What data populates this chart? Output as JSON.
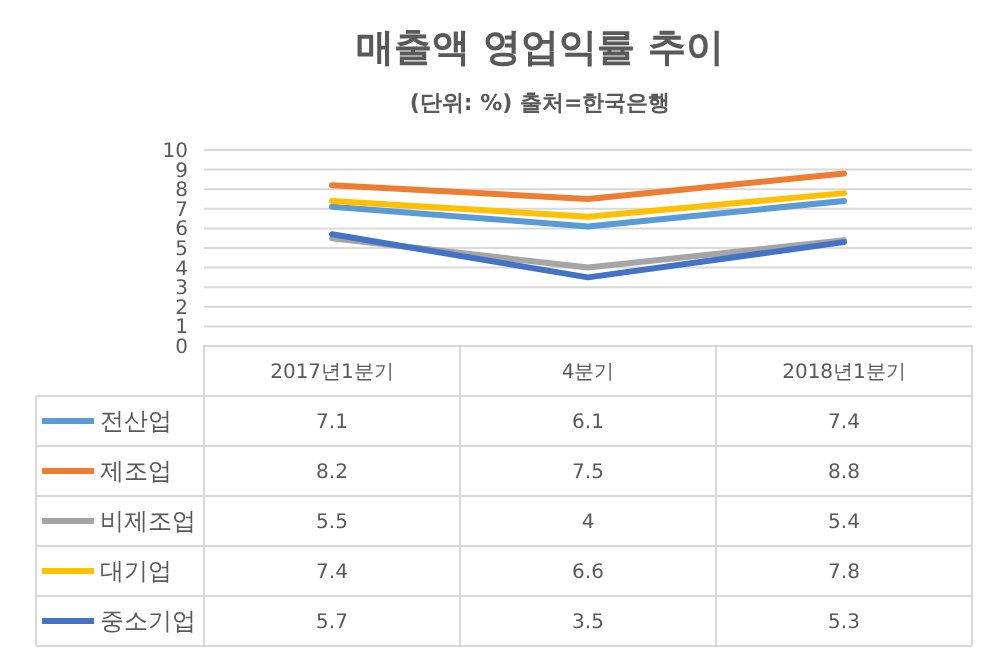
{
  "chart_data": {
    "type": "line",
    "title": "매출액 영업익률 추이",
    "subtitle": "(단위: %) 출처=한국은행",
    "categories": [
      "2017년1분기",
      "4분기",
      "2018년1분기"
    ],
    "series": [
      {
        "name": "전산업",
        "color": "#5b9bd5",
        "values": [
          7.1,
          6.1,
          7.4
        ]
      },
      {
        "name": "제조업",
        "color": "#ed7d31",
        "values": [
          8.2,
          7.5,
          8.8
        ]
      },
      {
        "name": "비제조업",
        "color": "#a5a5a5",
        "values": [
          5.5,
          4,
          5.4
        ]
      },
      {
        "name": "대기업",
        "color": "#ffc000",
        "values": [
          7.4,
          6.6,
          7.8
        ]
      },
      {
        "name": "중소기업",
        "color": "#4472c4",
        "values": [
          5.7,
          3.5,
          5.3
        ]
      }
    ],
    "ylim": [
      0,
      10
    ],
    "yticks": [
      0,
      1,
      2,
      3,
      4,
      5,
      6,
      7,
      8,
      9,
      10
    ],
    "grid": "y",
    "legend": "bottom",
    "data_labels": true,
    "line_style": "solid"
  }
}
